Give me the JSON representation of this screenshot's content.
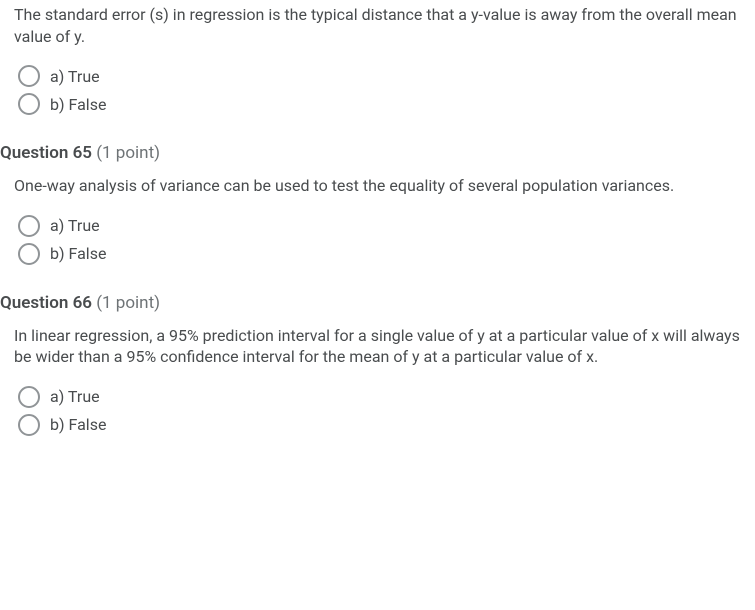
{
  "questions": [
    {
      "header": null,
      "text": "The standard error (s) in regression is the typical distance that a y-value is away from the overall mean value of y.",
      "options": [
        {
          "label": "a) True"
        },
        {
          "label": "b) False"
        }
      ]
    },
    {
      "header": {
        "number": "Question 65",
        "points": "(1 point)"
      },
      "text": "One-way analysis of variance can be used to test the equality of several population variances.",
      "options": [
        {
          "label": "a) True"
        },
        {
          "label": "b) False"
        }
      ]
    },
    {
      "header": {
        "number": "Question 66",
        "points": "(1 point)"
      },
      "text": "In linear regression, a 95% prediction interval for a single value of y at a particular value of x will always be wider than a 95% confidence interval for the mean of y at a particular value of x.",
      "options": [
        {
          "label": "a) True"
        },
        {
          "label": "b) False"
        }
      ]
    }
  ]
}
